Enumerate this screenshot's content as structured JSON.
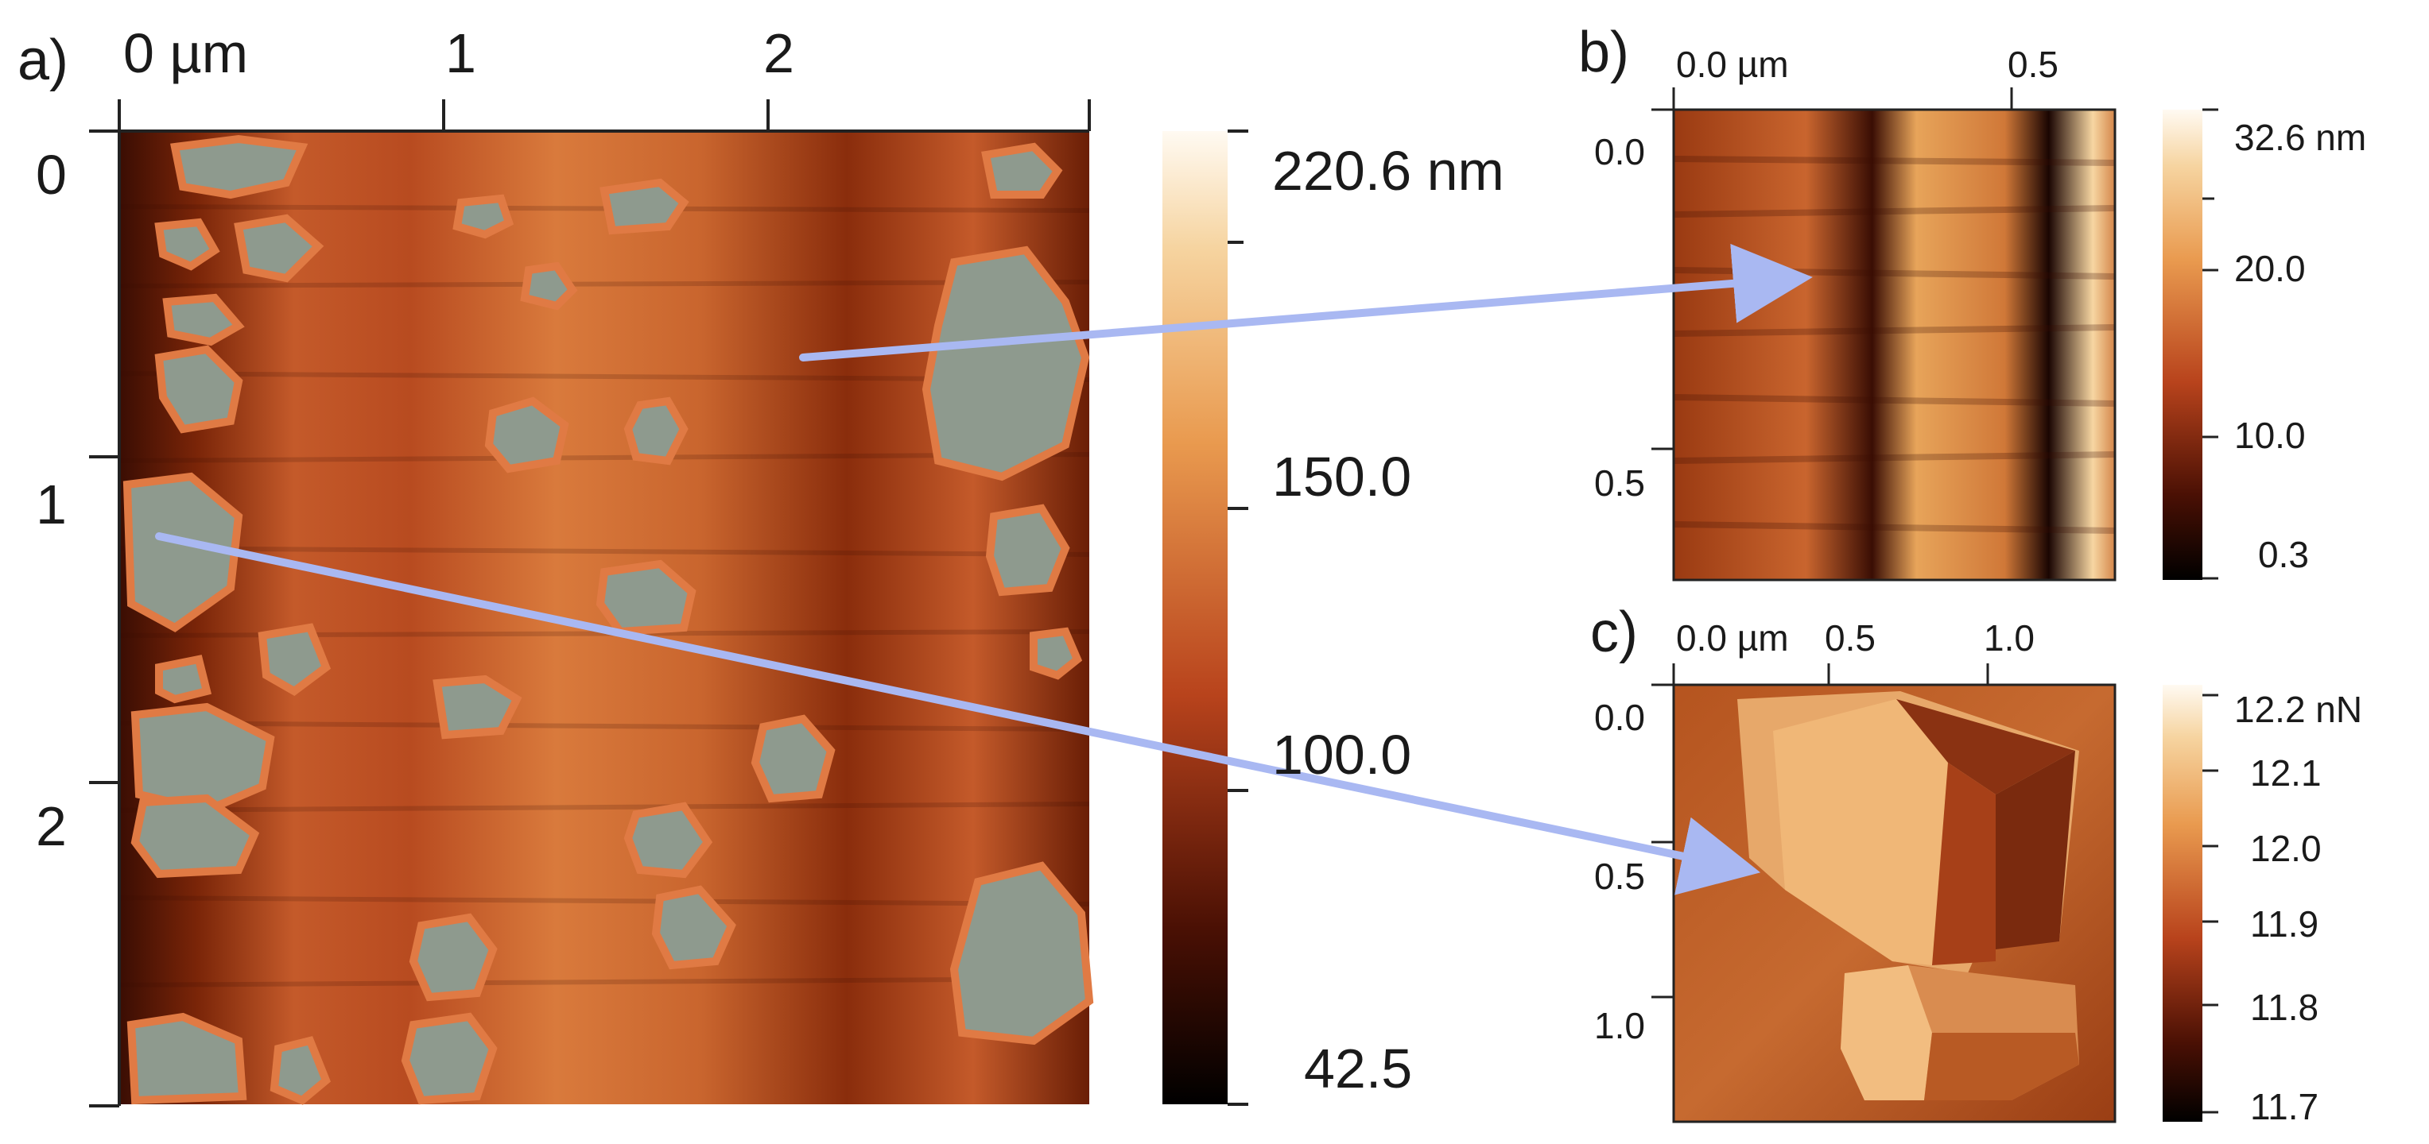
{
  "panels": {
    "a": {
      "label": "a)",
      "x_ticks": [
        "0 µm",
        "1",
        "2"
      ],
      "y_ticks": [
        "0",
        "1",
        "2"
      ],
      "colorbar": [
        "220.6 nm",
        "150.0",
        "100.0",
        "42.5"
      ]
    },
    "b": {
      "label": "b)",
      "x_ticks": [
        "0.0 µm",
        "0.5"
      ],
      "y_ticks": [
        "0.0",
        "0.5"
      ],
      "colorbar": [
        "32.6 nm",
        "20.0",
        "10.0",
        "0.3"
      ]
    },
    "c": {
      "label": "c)",
      "x_ticks": [
        "0.0 µm",
        "0.5",
        "1.0"
      ],
      "y_ticks": [
        "0.0",
        "0.5",
        "1.0"
      ],
      "colorbar": [
        "12.2 nN",
        "12.1",
        "12.0",
        "11.9",
        "11.8",
        "11.7"
      ]
    }
  },
  "colors": {
    "arrow": "#a9b8f2",
    "grain": "#8e9a8e",
    "afm_mid": "#c75a2c",
    "afm_dark": "#2a0a03",
    "afm_light": "#fff6e6"
  }
}
